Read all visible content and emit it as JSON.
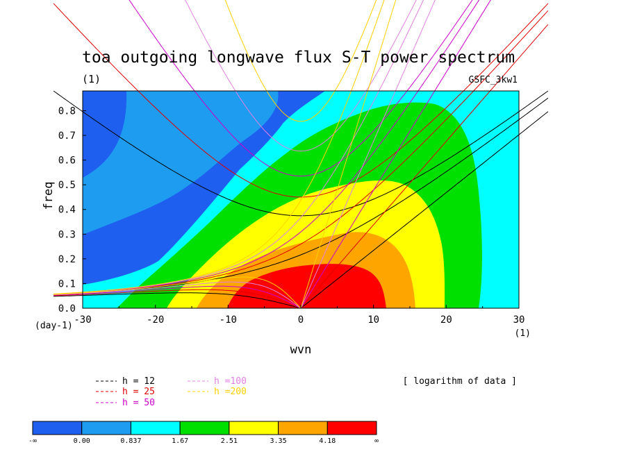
{
  "chart_data": {
    "type": "heatmap",
    "title": "toa outgoing longwave flux S-T power spectrum",
    "subtitle_left": "(1)",
    "subtitle_right": "GSFC_3kw1",
    "xlabel": "wvn",
    "ylabel": "freq",
    "x_unit": "(1)",
    "y_unit": "(day-1)",
    "xlim": [
      -30,
      30
    ],
    "ylim": [
      0,
      0.88
    ],
    "x_ticks": [
      "-30",
      "-20",
      "-10",
      "0",
      "10",
      "20",
      "30"
    ],
    "y_ticks": [
      "0.0",
      "0.1",
      "0.2",
      "0.3",
      "0.4",
      "0.5",
      "0.6",
      "0.7",
      "0.8"
    ],
    "annotation": "[ logarithm of data ]",
    "colorbar": {
      "labels": [
        "-∞",
        "0.00",
        "0.837",
        "1.67",
        "2.51",
        "3.35",
        "4.18",
        "∞"
      ],
      "colors": [
        "#1f5ff0",
        "#1e9cf0",
        "#00ffff",
        "#00e000",
        "#ffff00",
        "#ffa500",
        "#ff0000"
      ]
    },
    "filled_regions": [
      {
        "level": "< 0.00",
        "color": "#1f5ff0"
      },
      {
        "level": "0.00 - 0.837",
        "color": "#1e9cf0"
      },
      {
        "level": "0.837 - 1.67",
        "color": "#00ffff"
      },
      {
        "level": "1.67 - 2.51",
        "color": "#00e000"
      },
      {
        "level": "2.51 - 3.35",
        "color": "#ffff00"
      },
      {
        "level": "3.35 - 4.18",
        "color": "#ffa500"
      },
      {
        "level": "> 4.18",
        "color": "#ff0000"
      }
    ],
    "dispersion_curves": {
      "legend": [
        {
          "label": "h = 12",
          "color": "#000000"
        },
        {
          "label": "h = 25",
          "color": "#e00000"
        },
        {
          "label": "h = 50",
          "color": "#cc00cc"
        },
        {
          "label": "h =100",
          "color": "#e080e0"
        },
        {
          "label": "h =200",
          "color": "#ffd000"
        }
      ],
      "families": [
        "kelvin",
        "mrg",
        "n=1 equatorial rossby",
        "n=1 inertia-gravity"
      ]
    }
  }
}
